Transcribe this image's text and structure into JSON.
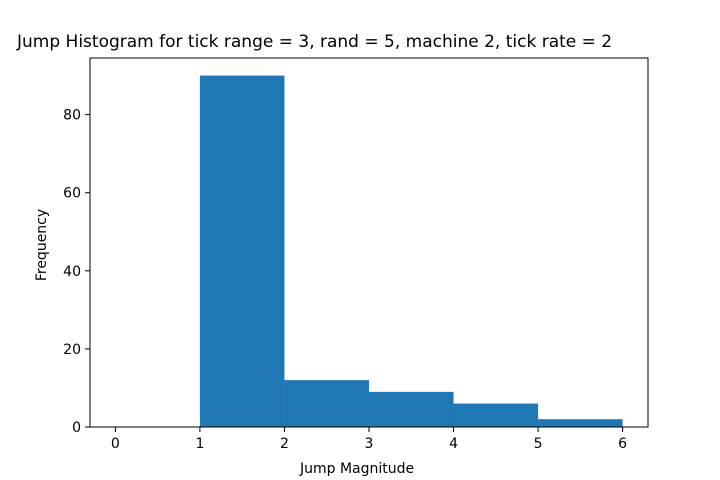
{
  "chart_data": {
    "type": "bar",
    "title": "Jump Histogram for tick range = 3, rand = 5, machine 2, tick rate = 2",
    "xlabel": "Jump Magnitude",
    "ylabel": "Frequency",
    "bins": [
      [
        1,
        2
      ],
      [
        2,
        3
      ],
      [
        3,
        4
      ],
      [
        4,
        5
      ],
      [
        5,
        6
      ]
    ],
    "values": [
      90,
      12,
      9,
      6,
      2
    ],
    "xlim": [
      -0.3,
      6.3
    ],
    "ylim": [
      0,
      94.5
    ],
    "xticks": [
      0,
      1,
      2,
      3,
      4,
      5,
      6
    ],
    "yticks": [
      0,
      20,
      40,
      60,
      80
    ],
    "bar_color": "#1f77b4",
    "grid": false,
    "legend": "none"
  }
}
